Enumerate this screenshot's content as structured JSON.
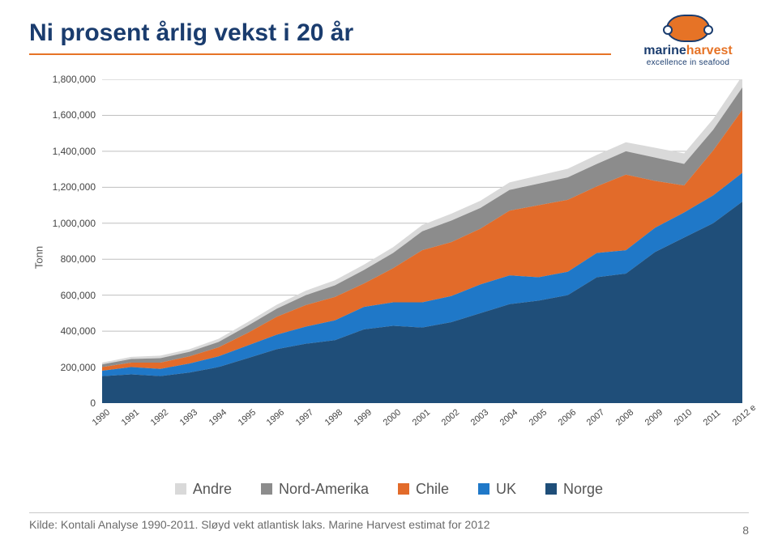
{
  "title": "Ni prosent årlig vekst i 20 år",
  "logo": {
    "name_a": "marine",
    "name_b": "harvest",
    "tagline": "excellence in seafood"
  },
  "chart": {
    "type": "stacked-area",
    "ylabel": "Tonn",
    "ylim": [
      0,
      1800000
    ],
    "ytick_step": 200000,
    "ytick_labels": [
      "0",
      "200,000",
      "400,000",
      "600,000",
      "800,000",
      "1,000,000",
      "1,200,000",
      "1,400,000",
      "1,600,000",
      "1,800,000"
    ],
    "x_categories": [
      "1990",
      "1991",
      "1992",
      "1993",
      "1994",
      "1995",
      "1996",
      "1997",
      "1998",
      "1999",
      "2000",
      "2001",
      "2002",
      "2003",
      "2004",
      "2005",
      "2006",
      "2007",
      "2008",
      "2009",
      "2010",
      "2011",
      "2012 e"
    ],
    "grid_color": "#bfbfbf",
    "background_color": "#ffffff",
    "series": [
      {
        "name": "Norge",
        "color": "#1f4e79",
        "values": [
          150000,
          160000,
          150000,
          170000,
          200000,
          250000,
          300000,
          330000,
          350000,
          410000,
          430000,
          420000,
          450000,
          500000,
          550000,
          570000,
          600000,
          700000,
          720000,
          840000,
          920000,
          1000000,
          1120000
        ]
      },
      {
        "name": "UK",
        "color": "#1f78c8",
        "values": [
          30000,
          40000,
          40000,
          50000,
          60000,
          70000,
          80000,
          95000,
          110000,
          125000,
          130000,
          140000,
          145000,
          160000,
          160000,
          130000,
          130000,
          135000,
          130000,
          135000,
          140000,
          155000,
          160000
        ]
      },
      {
        "name": "Chile",
        "color": "#e26b2a",
        "values": [
          20000,
          25000,
          35000,
          40000,
          50000,
          70000,
          100000,
          120000,
          130000,
          130000,
          190000,
          290000,
          300000,
          310000,
          360000,
          400000,
          400000,
          370000,
          420000,
          260000,
          150000,
          250000,
          350000
        ]
      },
      {
        "name": "Nord-Amerika",
        "color": "#8c8c8c",
        "values": [
          15000,
          20000,
          25000,
          25000,
          30000,
          40000,
          45000,
          55000,
          65000,
          75000,
          85000,
          105000,
          120000,
          115000,
          115000,
          120000,
          125000,
          125000,
          130000,
          130000,
          120000,
          115000,
          125000
        ]
      },
      {
        "name": "Andre",
        "color": "#d9d9d9",
        "values": [
          10000,
          12000,
          14000,
          15000,
          17000,
          20000,
          22000,
          25000,
          28000,
          30000,
          32000,
          35000,
          38000,
          40000,
          42000,
          45000,
          48000,
          50000,
          50000,
          55000,
          58000,
          60000,
          65000
        ]
      }
    ],
    "legend_order": [
      "Andre",
      "Nord-Amerika",
      "Chile",
      "UK",
      "Norge"
    ]
  },
  "source": "Kilde: Kontali Analyse 1990-2011. Sløyd vekt atlantisk laks. Marine Harvest estimat for 2012",
  "page_number": "8"
}
